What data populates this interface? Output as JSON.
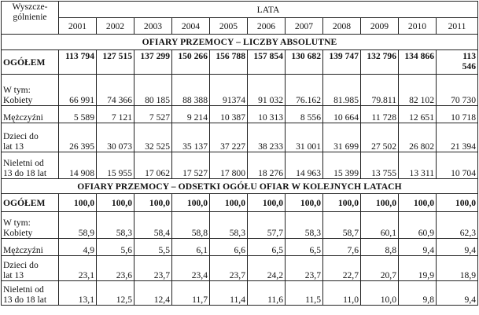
{
  "header": {
    "label_line1": "Wyszcze-",
    "label_line2": "gólnienie",
    "group": "LATA",
    "years": [
      "2001",
      "2002",
      "2003",
      "2004",
      "2005",
      "2006",
      "2007",
      "2008",
      "2009",
      "2010",
      "2011"
    ]
  },
  "section_abs": {
    "title": "OFIARY PRZEMOCY – LICZBY ABSOLUTNE",
    "ogolem": {
      "label": "OGÓŁEM",
      "values": [
        "113 794",
        "127 515",
        "137 299",
        "150 266",
        "156 788",
        "157 854",
        "130 682",
        "139 747",
        "132 796",
        "134 866"
      ],
      "last_line1": "113",
      "last_line2": "546"
    },
    "kobiety": {
      "label_line1": "W tym:",
      "label_line2": "Kobiety",
      "values": [
        "66 991",
        "74 366",
        "80 185",
        "88 388",
        "91374",
        "91 032",
        "76.162",
        "81.985",
        "79.811",
        "82 102",
        "70 730"
      ]
    },
    "mezczyzni": {
      "label": "Mężczyźni",
      "values": [
        "5 589",
        "7 121",
        "7 527",
        "9 214",
        "10 387",
        "10 313",
        "8 556",
        "10 664",
        "11 728",
        "12 651",
        "10 718"
      ]
    },
    "dzieci": {
      "label_line1": "Dzieci do",
      "label_line2": "lat 13",
      "values": [
        "26 395",
        "30 073",
        "32 525",
        "35 137",
        "37 227",
        "38 233",
        "31 001",
        "31 699",
        "27 502",
        "26 802",
        "21 394"
      ]
    },
    "nieletni": {
      "label_line1": "Nieletni od",
      "label_line2": "13 do 18 lat",
      "values": [
        "14 908",
        "15 955",
        "17 062",
        "17 527",
        "17 800",
        "18 276",
        "14 963",
        "15 399",
        "13 755",
        "13 311",
        "10 704"
      ]
    }
  },
  "section_pct": {
    "title": "OFIARY PRZEMOCY – ODSETKI OGÓŁU OFIAR W KOLEJNYCH LATACH",
    "ogolem": {
      "label": "OGÓŁEM",
      "values": [
        "100,0",
        "100,0",
        "100,0",
        "100,0",
        "100,0",
        "100,0",
        "100,0",
        "100,0",
        "100,0",
        "100,0",
        "100,0"
      ]
    },
    "kobiety": {
      "label_line1": "W tym:",
      "label_line2": "Kobiety",
      "values": [
        "58,9",
        "58,3",
        "58,4",
        "58,8",
        "58,3",
        "57,7",
        "58,3",
        "58,7",
        "60,1",
        "60,9",
        "62,3"
      ]
    },
    "mezczyzni": {
      "label": "Mężczyźni",
      "values": [
        "4,9",
        "5,6",
        "5,5",
        "6,1",
        "6,6",
        "6,5",
        "6,5",
        "7,6",
        "8,8",
        "9,4",
        "9,4"
      ]
    },
    "dzieci": {
      "label_line1": "Dzieci do",
      "label_line2": "lat 13",
      "values": [
        "23,1",
        "23,6",
        "23,7",
        "23,4",
        "23,7",
        "24,2",
        "23,7",
        "22,7",
        "20,7",
        "19,9",
        "18,9"
      ]
    },
    "nieletni": {
      "label_line1": "Nieletni od",
      "label_line2": "13 do 18 lat",
      "values": [
        "13,1",
        "12,5",
        "12,4",
        "11,7",
        "11,4",
        "11,6",
        "11,5",
        "11,0",
        "10,0",
        "9,8",
        "9,4"
      ]
    }
  }
}
